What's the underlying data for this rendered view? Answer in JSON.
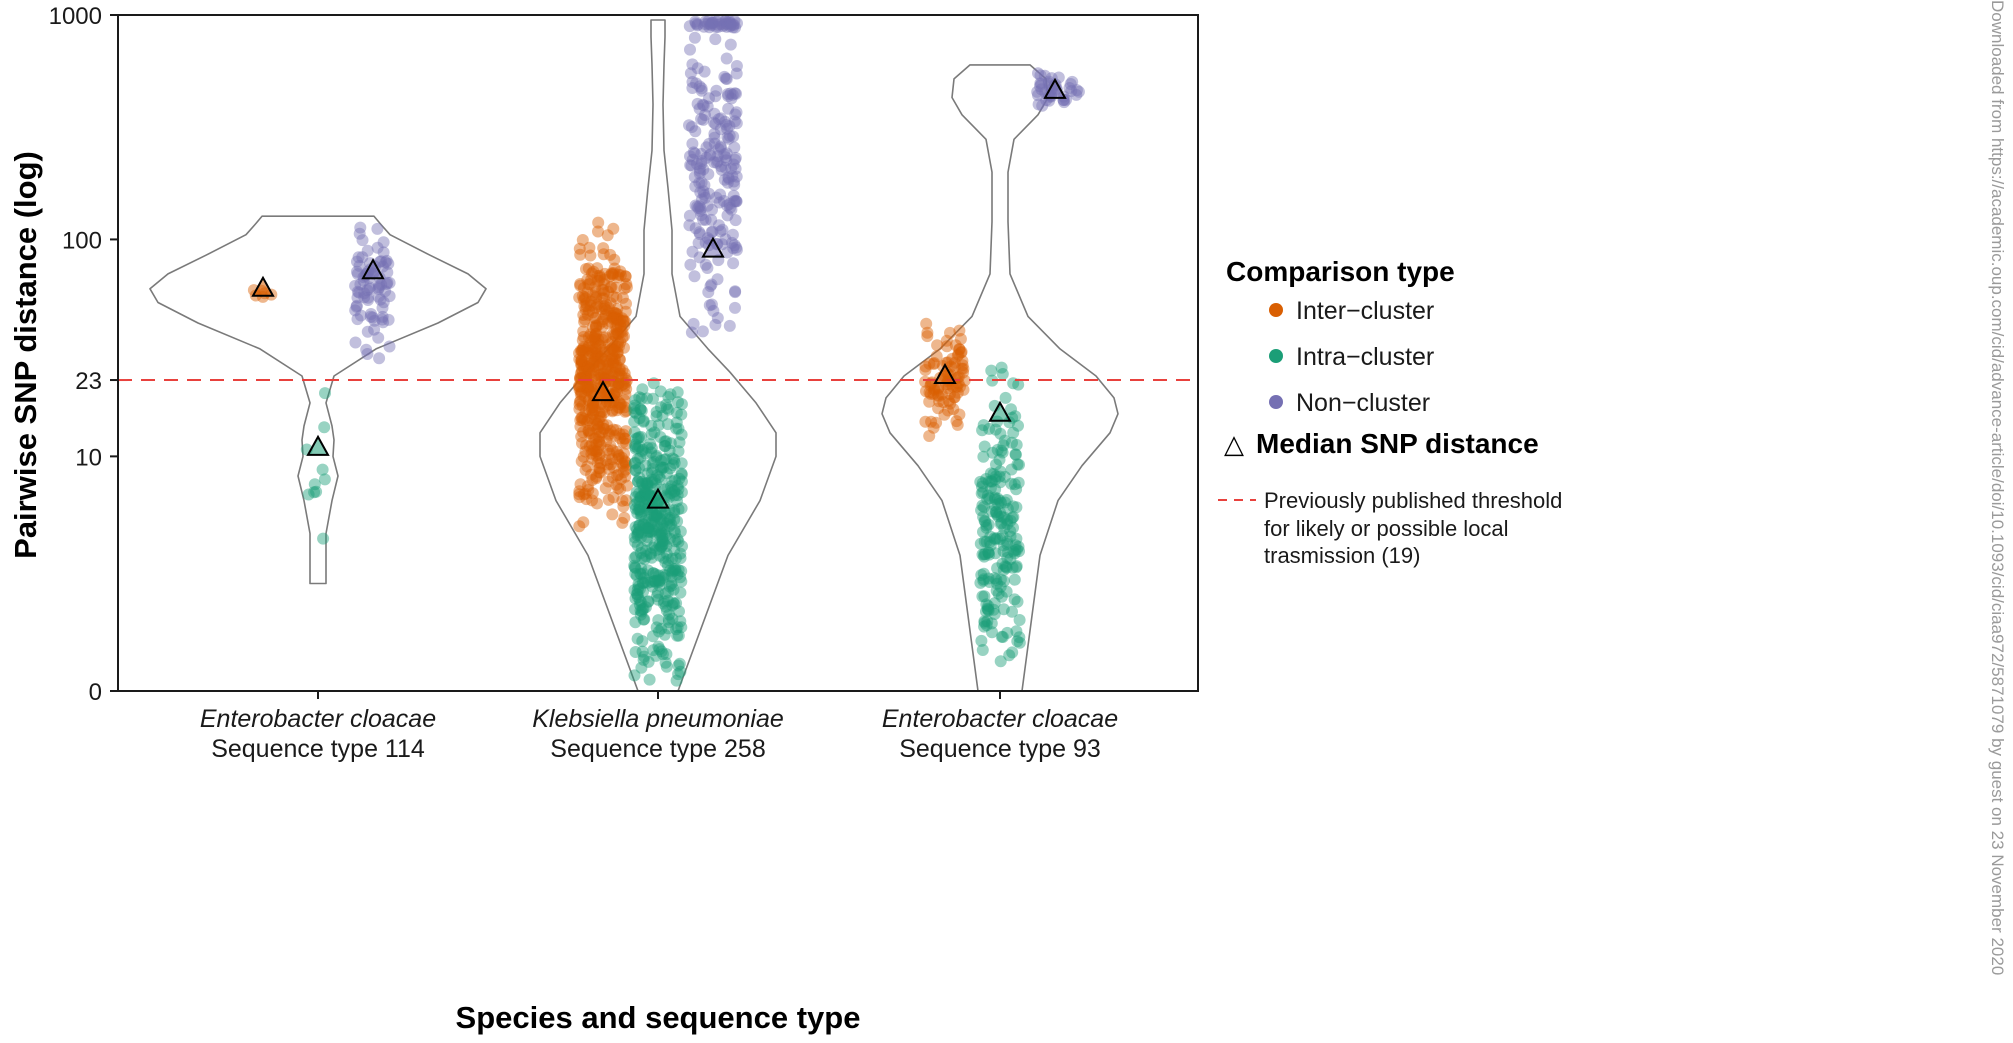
{
  "chart_data": {
    "type": "scatter",
    "subtype": "violin with jittered points and median markers",
    "xlabel": "Species and sequence type",
    "ylabel": "Pairwise SNP distance (log)",
    "y_scale": "log(1 + distance)",
    "ylim": [
      0,
      1000
    ],
    "yticks": [
      "0",
      "10",
      "23",
      "100",
      "1000"
    ],
    "categories": [
      {
        "species": "Enterobacter cloacae",
        "sequence_type": "Sequence type 114"
      },
      {
        "species": "Klebsiella pneumoniae",
        "sequence_type": "Sequence type 258"
      },
      {
        "species": "Enterobacter cloacae",
        "sequence_type": "Sequence type 93"
      }
    ],
    "series": [
      {
        "name": "Inter−cluster",
        "color": "#d95f02",
        "median": [
          60,
          20,
          24
        ],
        "range": [
          [
            52,
            63
          ],
          [
            4,
            133
          ],
          [
            12,
            44
          ]
        ]
      },
      {
        "name": "Intra−cluster",
        "color": "#1b9e77",
        "median": [
          11,
          6,
          16
        ],
        "range": [
          [
            2,
            26
          ],
          [
            0,
            27
          ],
          [
            0,
            28
          ]
        ]
      },
      {
        "name": "Non−cluster",
        "color": "#7570b3",
        "median": [
          72,
          90,
          460
        ],
        "range": [
          [
            26,
            127
          ],
          [
            33,
            950
          ],
          [
            370,
            570
          ]
        ]
      }
    ],
    "legend_title": "Comparison type",
    "legend_position": "right",
    "median_legend": "Median SNP distance",
    "median_symbol": "△",
    "threshold": {
      "value": 23,
      "color": "#e8413d",
      "label_lines": [
        "Previously published threshold",
        "for likely or possible local",
        "trasmission (19)"
      ]
    }
  },
  "watermark": "Downloaded from https://academic.oup.com/cid/advance-article/doi/10.1093/cid/ciaa972/5871079 by guest on 23 November 2020"
}
